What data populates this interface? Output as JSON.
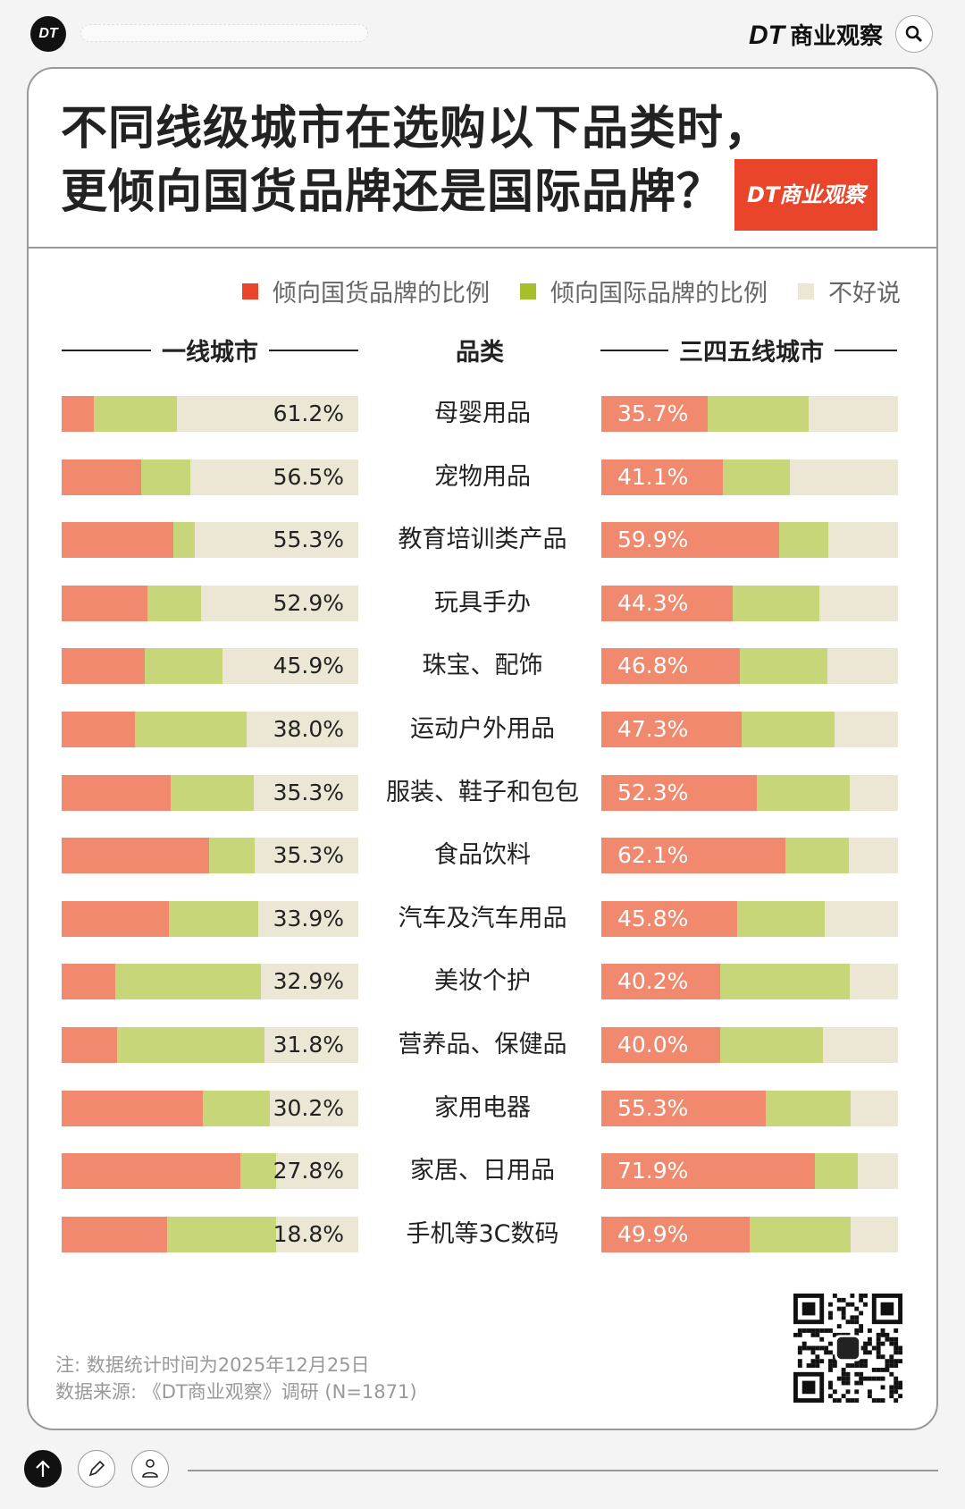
{
  "header": {
    "logo": "DT",
    "brand_prefix": "DT",
    "brand_text": "商业观察",
    "search_icon": "search-icon"
  },
  "title": {
    "line1": "不同线级城市在选购以下品类时，",
    "line2": "更倾向国货品牌还是国际品牌？",
    "badge": "DT商业观察"
  },
  "colors": {
    "domestic": "#f0896e",
    "international": "#c8d67a",
    "unsure": "#ece6d4",
    "legend_domestic": "#e8452a",
    "legend_international": "#a4c02a",
    "legend_unsure": "#ece6d4"
  },
  "chart_data": {
    "type": "bar",
    "stacked": true,
    "legend": [
      "倾向国货品牌的比例",
      "倾向国际品牌的比例",
      "不好说"
    ],
    "legend_placement": "top-right",
    "column_headers": {
      "left": "一线城市",
      "center": "品类",
      "right": "三四五线城市"
    },
    "categories": [
      "母婴用品",
      "宠物用品",
      "教育培训类产品",
      "玩具手办",
      "珠宝、配饰",
      "运动户外用品",
      "服装、鞋子和包包",
      "食品饮料",
      "汽车及汽车用品",
      "美妆个护",
      "营养品、保健品",
      "家用电器",
      "家居、日用品",
      "手机等3C数码"
    ],
    "tier1": {
      "labels": [
        "61.2%",
        "56.5%",
        "55.3%",
        "52.9%",
        "45.9%",
        "38.0%",
        "35.3%",
        "35.3%",
        "33.9%",
        "32.9%",
        "31.8%",
        "30.2%",
        "27.8%",
        "18.8%"
      ],
      "domestic": [
        10.7,
        26.9,
        37.7,
        28.9,
        27.9,
        24.7,
        36.7,
        49.7,
        36.0,
        18.2,
        18.8,
        47.7,
        60.1,
        35.4
      ],
      "international": [
        28.2,
        16.6,
        7.1,
        18.2,
        26.3,
        37.7,
        28.2,
        15.3,
        30.2,
        49.0,
        49.7,
        22.4,
        12.3,
        37.0
      ]
    },
    "tier345": {
      "labels": [
        "35.7%",
        "41.1%",
        "59.9%",
        "44.3%",
        "46.8%",
        "47.3%",
        "52.3%",
        "62.1%",
        "45.8%",
        "40.2%",
        "40.0%",
        "55.3%",
        "71.9%",
        "49.9%"
      ],
      "domestic": [
        35.7,
        41.1,
        59.9,
        44.3,
        46.8,
        47.3,
        52.3,
        62.1,
        45.8,
        40.2,
        40.0,
        55.3,
        71.9,
        49.9
      ],
      "international": [
        34.1,
        22.4,
        16.6,
        29.2,
        29.5,
        31.2,
        31.5,
        21.4,
        29.5,
        43.5,
        34.7,
        28.6,
        14.6,
        34.1
      ]
    }
  },
  "notes": {
    "line1": "注: 数据统计时间为2025年12月25日",
    "line2": "数据来源: 《DT商业观察》调研 (N=1871)"
  },
  "footer": {
    "icons": [
      "arrow-up-icon",
      "pencil-icon",
      "user-icon"
    ]
  }
}
